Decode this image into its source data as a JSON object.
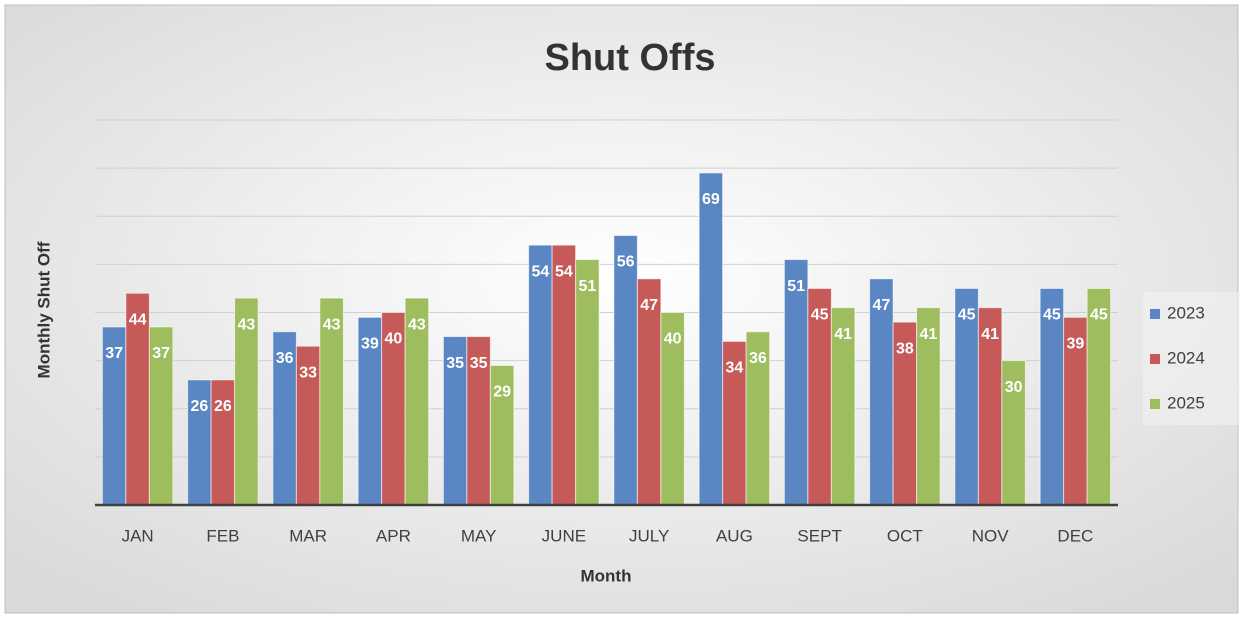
{
  "chart_data": {
    "type": "bar",
    "title": "Shut Offs",
    "x_label": "Month",
    "y_label": "Monthly Shut Off",
    "categories": [
      "JAN",
      "FEB",
      "MAR",
      "APR",
      "MAY",
      "JUNE",
      "JULY",
      "AUG",
      "SEPT",
      "OCT",
      "NOV",
      "DEC"
    ],
    "series": [
      {
        "name": "2023",
        "color": "#5a86c3",
        "values": [
          37,
          26,
          36,
          39,
          35,
          54,
          56,
          69,
          51,
          47,
          45,
          45
        ]
      },
      {
        "name": "2024",
        "color": "#c65a58",
        "values": [
          44,
          26,
          33,
          40,
          35,
          54,
          47,
          34,
          45,
          38,
          41,
          39
        ]
      },
      {
        "name": "2025",
        "color": "#9dbd5e",
        "values": [
          37,
          43,
          43,
          43,
          29,
          51,
          40,
          36,
          41,
          41,
          30,
          45
        ]
      }
    ],
    "ylim": [
      0,
      80
    ],
    "yticks": [
      0,
      10,
      20,
      30,
      40,
      50,
      60,
      70,
      80
    ],
    "grid": true,
    "legend": "right"
  }
}
